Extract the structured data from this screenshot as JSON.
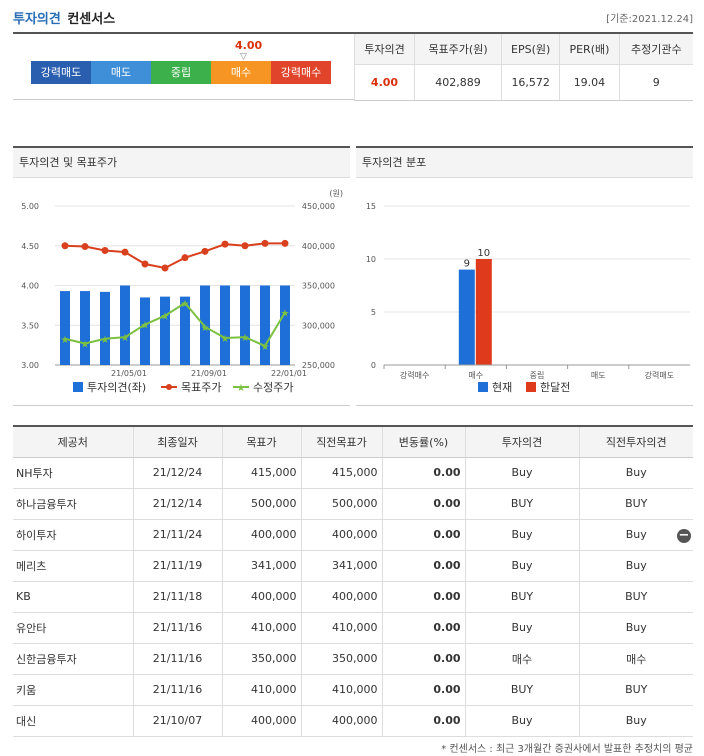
{
  "header": {
    "title1": "투자의견",
    "title2": "컨센서스",
    "date": "[기준:2021.12.24]"
  },
  "opinion_bar": {
    "value": "4.00",
    "marker": "▽",
    "segments": [
      {
        "label": "강력매도",
        "color": "#2a5fb0"
      },
      {
        "label": "매도",
        "color": "#3f8fd8"
      },
      {
        "label": "중립",
        "color": "#3cb04a"
      },
      {
        "label": "매수",
        "color": "#f69523"
      },
      {
        "label": "강력매수",
        "color": "#e0442b"
      }
    ]
  },
  "summary": {
    "headers": [
      "투자의견",
      "목표주가(원)",
      "EPS(원)",
      "PER(배)",
      "추정기관수"
    ],
    "values": [
      "4.00",
      "402,889",
      "16,572",
      "19.04",
      "9"
    ]
  },
  "chart1": {
    "title": "투자의견 및 목표주가",
    "chart_data": {
      "type": "bar",
      "unit_label": "(원)",
      "x_ticks": [
        "21/05/01",
        "21/09/01",
        "22/01/01"
      ],
      "left_axis": {
        "ticks": [
          "5.00",
          "4.50",
          "4.00",
          "3.50",
          "3.00"
        ],
        "ylim": [
          3.0,
          5.0
        ]
      },
      "right_axis": {
        "ticks": [
          "450,000",
          "400,000",
          "350,000",
          "300,000",
          "250,000"
        ],
        "ylim": [
          250000,
          450000
        ]
      },
      "series": [
        {
          "name": "투자의견(좌)",
          "kind": "bar",
          "axis": "left",
          "color": "#1f6fd8",
          "values": [
            3.93,
            3.93,
            3.92,
            4.0,
            3.85,
            3.86,
            3.86,
            4.0,
            4.0,
            4.0,
            4.0,
            4.0
          ]
        },
        {
          "name": "목표주가",
          "kind": "line",
          "axis": "right",
          "color": "#d9401e",
          "values": [
            400000,
            399000,
            394000,
            392000,
            377000,
            372000,
            385000,
            393000,
            402000,
            400000,
            403000,
            403000
          ]
        },
        {
          "name": "수정주가",
          "kind": "line",
          "axis": "right",
          "color": "#7cc142",
          "values": [
            283000,
            277000,
            283000,
            285000,
            301000,
            312000,
            328000,
            298000,
            284000,
            285000,
            274000,
            316000
          ]
        }
      ]
    }
  },
  "chart2": {
    "title": "투자의견 분포",
    "chart_data": {
      "type": "bar",
      "categories": [
        "강력매수",
        "매수",
        "중립",
        "매도",
        "강력매도"
      ],
      "y_ticks": [
        "15",
        "10",
        "5",
        "0"
      ],
      "ylim": [
        0,
        15
      ],
      "series": [
        {
          "name": "현재",
          "color": "#1f6fd8",
          "values": [
            0,
            9,
            0,
            0,
            0
          ]
        },
        {
          "name": "한달전",
          "color": "#e03a1c",
          "values": [
            0,
            10,
            0,
            0,
            0
          ]
        }
      ],
      "data_labels": [
        "9",
        "10"
      ]
    }
  },
  "table": {
    "headers": [
      "제공처",
      "최종일자",
      "목표가",
      "직전목표가",
      "변동률(%)",
      "투자의견",
      "직전투자의견"
    ],
    "rows": [
      [
        "NH투자",
        "21/12/24",
        "415,000",
        "415,000",
        "0.00",
        "Buy",
        "Buy"
      ],
      [
        "하나금융투자",
        "21/12/14",
        "500,000",
        "500,000",
        "0.00",
        "BUY",
        "BUY"
      ],
      [
        "하이투자",
        "21/11/24",
        "400,000",
        "400,000",
        "0.00",
        "Buy",
        "Buy"
      ],
      [
        "메리츠",
        "21/11/19",
        "341,000",
        "341,000",
        "0.00",
        "Buy",
        "Buy"
      ],
      [
        "KB",
        "21/11/18",
        "400,000",
        "400,000",
        "0.00",
        "BUY",
        "BUY"
      ],
      [
        "유안타",
        "21/11/16",
        "410,000",
        "410,000",
        "0.00",
        "Buy",
        "Buy"
      ],
      [
        "신한금융투자",
        "21/11/16",
        "350,000",
        "350,000",
        "0.00",
        "매수",
        "매수"
      ],
      [
        "키움",
        "21/11/16",
        "410,000",
        "410,000",
        "0.00",
        "BUY",
        "BUY"
      ],
      [
        "대신",
        "21/10/07",
        "400,000",
        "400,000",
        "0.00",
        "Buy",
        "Buy"
      ]
    ]
  },
  "row_action_label": "−",
  "footnote": "* 컨센서스 : 최근 3개월간 증권사에서 발표한 추정치의 평균"
}
